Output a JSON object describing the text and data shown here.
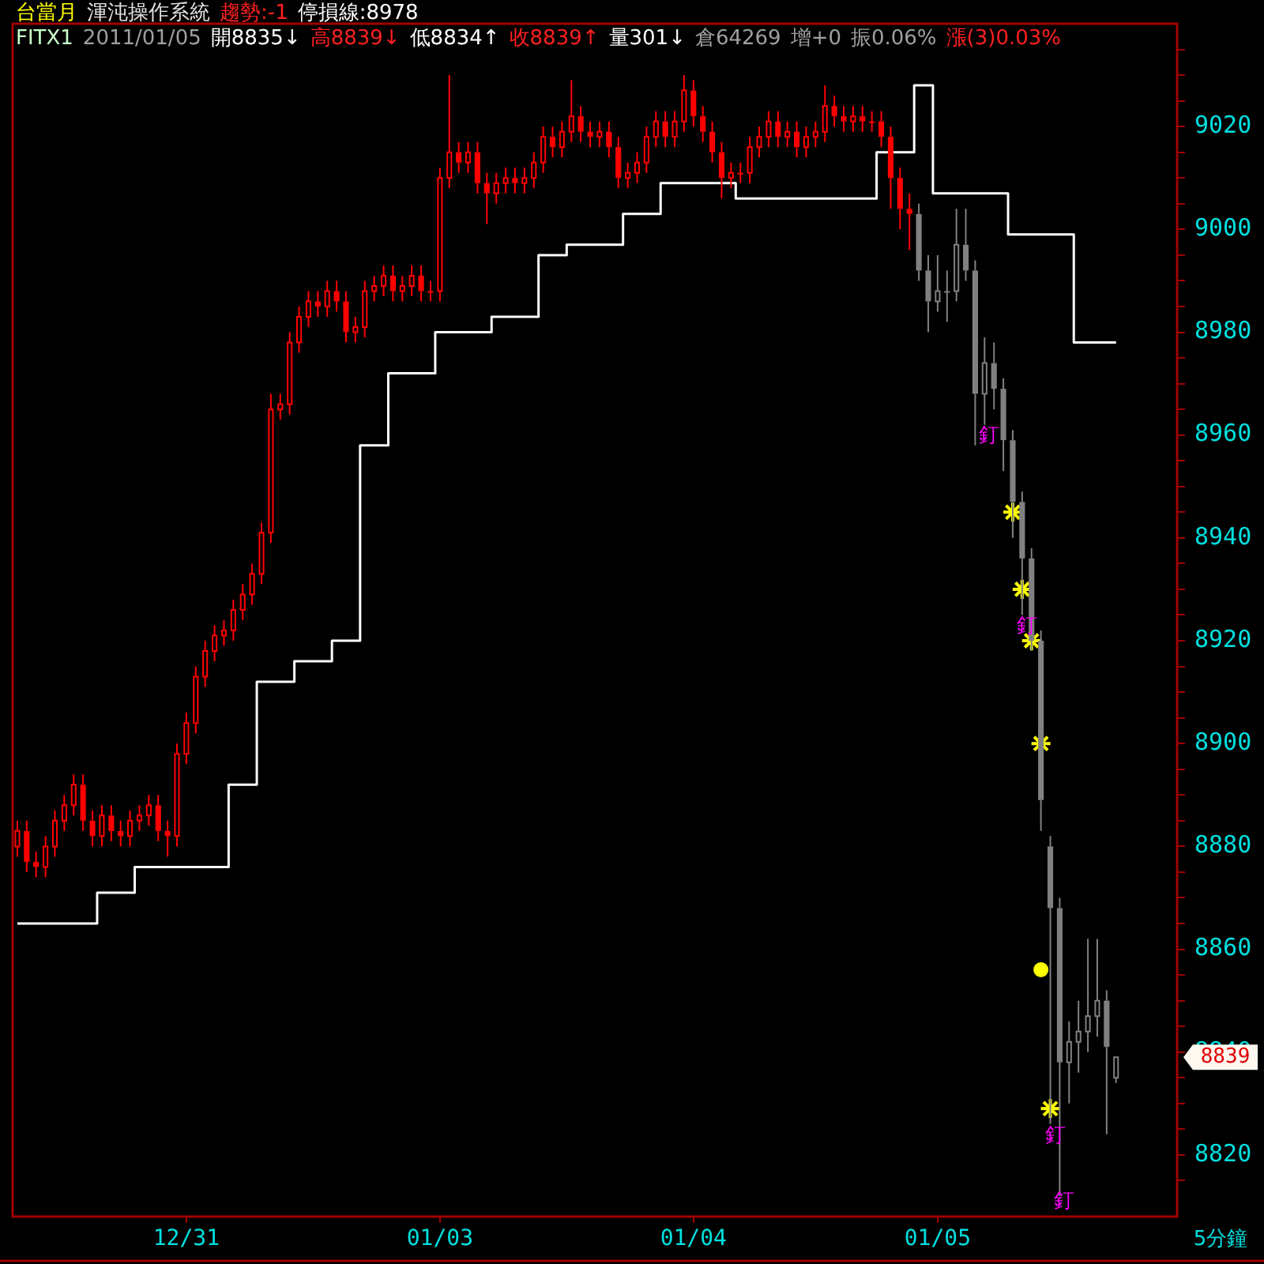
{
  "chart_data": {
    "type": "candlestick",
    "title": "台當月",
    "subtitle": "渾沌操作系統",
    "annotations": [
      "趨勢:-1",
      "停損線:8978",
      "FITX1",
      "2011/01/05",
      "開8835↓",
      "高8839↓",
      "低8834↑",
      "收8839↑",
      "量301↓",
      "倉64269",
      "增+0",
      "振0.06%",
      "漲(3)0.03%",
      "5分鐘",
      "8839"
    ],
    "categories": [
      null,
      null,
      null,
      null,
      null,
      null,
      null,
      null,
      null,
      null,
      null,
      null,
      null,
      null,
      null,
      null,
      null,
      null,
      "12/31",
      null,
      null,
      null,
      null,
      null,
      null,
      null,
      null,
      null,
      null,
      null,
      null,
      null,
      null,
      null,
      null,
      null,
      null,
      null,
      null,
      null,
      null,
      null,
      null,
      null,
      null,
      "01/03",
      null,
      null,
      null,
      null,
      null,
      null,
      null,
      null,
      null,
      null,
      null,
      null,
      null,
      null,
      null,
      null,
      null,
      null,
      null,
      null,
      null,
      null,
      null,
      null,
      null,
      null,
      "01/04",
      null,
      null,
      null,
      null,
      null,
      null,
      null,
      null,
      null,
      null,
      null,
      null,
      null,
      null,
      null,
      null,
      null,
      null,
      null,
      null,
      null,
      null,
      null,
      null,
      null,
      "01/05",
      null,
      null,
      null,
      null,
      null,
      null,
      null,
      null,
      null,
      null,
      null,
      null,
      null,
      null,
      null,
      null,
      null,
      null,
      null,
      null,
      null,
      null,
      null,
      null,
      null
    ],
    "ylim": [
      8808,
      9040
    ],
    "yticks": [
      {
        "value": 8815,
        "label": null
      },
      8820,
      {
        "value": 8825,
        "label": null
      },
      {
        "value": 8830,
        "label": null
      },
      {
        "value": 8835,
        "label": null
      },
      8840,
      {
        "value": 8845,
        "label": null
      },
      {
        "value": 8850,
        "label": null
      },
      {
        "value": 8855,
        "label": null
      },
      8860,
      {
        "value": 8865,
        "label": null
      },
      {
        "value": 8870,
        "label": null
      },
      {
        "value": 8875,
        "label": null
      },
      8880,
      {
        "value": 8885,
        "label": null
      },
      {
        "value": 8890,
        "label": null
      },
      {
        "value": 8895,
        "label": null
      },
      8900,
      {
        "value": 8905,
        "label": null
      },
      {
        "value": 8910,
        "label": null
      },
      {
        "value": 8915,
        "label": null
      },
      8920,
      {
        "value": 8925,
        "label": null
      },
      {
        "value": 8930,
        "label": null
      },
      {
        "value": 8935,
        "label": null
      },
      8940,
      {
        "value": 8945,
        "label": null
      },
      {
        "value": 8950,
        "label": null
      },
      {
        "value": 8955,
        "label": null
      },
      8960,
      {
        "value": 8965,
        "label": null
      },
      {
        "value": 8970,
        "label": null
      },
      {
        "value": 8975,
        "label": null
      },
      8980,
      {
        "value": 8985,
        "label": null
      },
      {
        "value": 8990,
        "label": null
      },
      {
        "value": 8995,
        "label": null
      },
      9000,
      {
        "value": 9005,
        "label": null
      },
      {
        "value": 9010,
        "label": null
      },
      {
        "value": 9015,
        "label": null
      },
      9020,
      {
        "value": 9025,
        "label": null
      },
      {
        "value": 9030,
        "label": null
      },
      {
        "value": 9035,
        "label": null
      }
    ],
    "legend": false,
    "series": [
      {
        "color": "#ff0000",
        "ohlc": [
          [
            8880,
            8885,
            8878,
            8883
          ],
          [
            8883,
            8885,
            8875,
            8877
          ],
          [
            8877,
            8879,
            8874,
            8876
          ],
          [
            8876,
            8882,
            8874,
            8880
          ],
          [
            8880,
            8887,
            8878,
            8885
          ],
          [
            8885,
            8890,
            8883,
            8888
          ],
          [
            8888,
            8894,
            8886,
            8892
          ],
          [
            8892,
            8894,
            8883,
            8885
          ],
          [
            8885,
            8887,
            8880,
            8882
          ],
          [
            8882,
            8888,
            8880,
            8886
          ],
          [
            8886,
            8888,
            8881,
            8883
          ],
          [
            8883,
            8885,
            8880,
            8882
          ],
          [
            8882,
            8887,
            8880,
            8885
          ],
          [
            8885,
            8888,
            8883,
            8886
          ],
          [
            8886,
            8890,
            8884,
            8888
          ],
          [
            8888,
            8890,
            8881,
            8883
          ],
          [
            8883,
            8885,
            8878,
            8882
          ],
          [
            8882,
            8900,
            8880,
            8898
          ],
          [
            8898,
            8906,
            8896,
            8904
          ],
          [
            8904,
            8915,
            8902,
            8913
          ],
          [
            8913,
            8920,
            8911,
            8918
          ],
          [
            8918,
            8923,
            8916,
            8921
          ],
          [
            8921,
            8924,
            8919,
            8922
          ],
          [
            8922,
            8928,
            8920,
            8926
          ],
          [
            8926,
            8931,
            8924,
            8929
          ],
          [
            8929,
            8935,
            8927,
            8933
          ],
          [
            8933,
            8943,
            8931,
            8941
          ],
          [
            8941,
            8968,
            8939,
            8965
          ],
          [
            8965,
            8968,
            8963,
            8966
          ],
          [
            8966,
            8980,
            8964,
            8978
          ],
          [
            8978,
            8985,
            8976,
            8983
          ],
          [
            8983,
            8988,
            8981,
            8986
          ],
          [
            8986,
            8988,
            8983,
            8985
          ],
          [
            8985,
            8990,
            8983,
            8988
          ],
          [
            8988,
            8990,
            8984,
            8986
          ],
          [
            8986,
            8988,
            8978,
            8980
          ],
          [
            8980,
            8983,
            8978,
            8981
          ],
          [
            8981,
            8990,
            8979,
            8988
          ],
          [
            8988,
            8991,
            8986,
            8989
          ],
          [
            8989,
            8993,
            8987,
            8991
          ],
          [
            8991,
            8993,
            8986,
            8988
          ],
          [
            8988,
            8991,
            8986,
            8989
          ],
          [
            8989,
            8993,
            8987,
            8991
          ],
          [
            8991,
            8993,
            8986,
            8988
          ],
          [
            8988,
            8990,
            8986,
            8988
          ],
          [
            8988,
            9012,
            8986,
            9010
          ],
          [
            9010,
            9030,
            9008,
            9015
          ],
          [
            9015,
            9017,
            9011,
            9013
          ],
          [
            9013,
            9017,
            9011,
            9015
          ],
          [
            9015,
            9017,
            9007,
            9009
          ],
          [
            9009,
            9011,
            9001,
            9007
          ],
          [
            9007,
            9011,
            9005,
            9009
          ],
          [
            9009,
            9012,
            9007,
            9010
          ],
          [
            9010,
            9012,
            9007,
            9009
          ],
          [
            9009,
            9012,
            9007,
            9010
          ],
          [
            9010,
            9015,
            9008,
            9013
          ],
          [
            9013,
            9020,
            9011,
            9018
          ],
          [
            9018,
            9020,
            9014,
            9016
          ],
          [
            9016,
            9021,
            9014,
            9019
          ],
          [
            9019,
            9029,
            9017,
            9022
          ],
          [
            9022,
            9024,
            9017,
            9019
          ],
          [
            9019,
            9021,
            9016,
            9018
          ],
          [
            9018,
            9021,
            9016,
            9019
          ],
          [
            9019,
            9021,
            9014,
            9016
          ],
          [
            9016,
            9018,
            9008,
            9010
          ],
          [
            9010,
            9013,
            9008,
            9011
          ],
          [
            9011,
            9015,
            9009,
            9013
          ],
          [
            9013,
            9020,
            9011,
            9018
          ],
          [
            9018,
            9023,
            9016,
            9021
          ],
          [
            9021,
            9023,
            9016,
            9018
          ],
          [
            9018,
            9023,
            9016,
            9021
          ],
          [
            9021,
            9030,
            9019,
            9027
          ],
          [
            9027,
            9029,
            9020,
            9022
          ],
          [
            9022,
            9024,
            9017,
            9019
          ],
          [
            9019,
            9021,
            9013,
            9015
          ],
          [
            9015,
            9017,
            9006,
            9010
          ],
          [
            9010,
            9013,
            9008,
            9011
          ],
          [
            9011,
            9013,
            9009,
            9011
          ],
          [
            9011,
            9018,
            9009,
            9016
          ],
          [
            9016,
            9020,
            9014,
            9018
          ],
          [
            9018,
            9023,
            9016,
            9021
          ],
          [
            9021,
            9023,
            9016,
            9018
          ],
          [
            9018,
            9021,
            9016,
            9019
          ],
          [
            9019,
            9021,
            9014,
            9016
          ],
          [
            9016,
            9020,
            9014,
            9018
          ],
          [
            9018,
            9021,
            9016,
            9019
          ],
          [
            9019,
            9028,
            9017,
            9024
          ],
          [
            9024,
            9026,
            9020,
            9022
          ],
          [
            9022,
            9024,
            9019,
            9021
          ],
          [
            9021,
            9024,
            9019,
            9022
          ],
          [
            9022,
            9024,
            9019,
            9021
          ],
          [
            9021,
            9023,
            9019,
            9021
          ],
          [
            9021,
            9023,
            9016,
            9018
          ],
          [
            9018,
            9020,
            9004,
            9010
          ],
          [
            9010,
            9012,
            9000,
            9004
          ],
          [
            9004,
            9007,
            8996,
            9003
          ],
          null,
          null,
          null,
          null,
          null,
          null,
          null,
          null,
          null,
          null,
          null,
          null,
          null,
          null,
          null,
          null,
          null,
          null,
          null,
          null,
          null,
          null,
          null,
          null,
          null,
          null,
          null,
          null
        ]
      },
      {
        "type": "candlestick",
        "color": "#808080",
        "ohlc": [
          null,
          null,
          null,
          null,
          null,
          null,
          null,
          null,
          null,
          null,
          null,
          null,
          null,
          null,
          null,
          null,
          null,
          null,
          null,
          null,
          null,
          null,
          null,
          null,
          null,
          null,
          null,
          null,
          null,
          null,
          null,
          null,
          null,
          null,
          null,
          null,
          null,
          null,
          null,
          null,
          null,
          null,
          null,
          null,
          null,
          null,
          null,
          null,
          null,
          null,
          null,
          null,
          null,
          null,
          null,
          null,
          null,
          null,
          null,
          null,
          null,
          null,
          null,
          null,
          null,
          null,
          null,
          null,
          null,
          null,
          null,
          null,
          null,
          null,
          null,
          null,
          null,
          null,
          null,
          null,
          null,
          null,
          null,
          null,
          null,
          null,
          null,
          null,
          null,
          null,
          null,
          null,
          null,
          null,
          null,
          null,
          [
            9003,
            9005,
            8990,
            8992
          ],
          [
            8992,
            8995,
            8980,
            8986
          ],
          [
            8986,
            8995,
            8984,
            8988
          ],
          [
            8988,
            8992,
            8982,
            8988
          ],
          [
            8988,
            9004,
            8986,
            8997
          ],
          [
            8997,
            9004,
            8990,
            8992
          ],
          [
            8992,
            8994,
            8958,
            8968
          ],
          [
            8968,
            8979,
            8962,
            8974
          ],
          [
            8974,
            8978,
            8965,
            8969
          ],
          [
            8969,
            8971,
            8953,
            8959
          ],
          [
            8959,
            8961,
            8940,
            8947
          ],
          [
            8947,
            8949,
            8925,
            8936
          ],
          [
            8936,
            8938,
            8918,
            8920
          ],
          [
            8920,
            8922,
            8883,
            8889
          ],
          [
            8880,
            8882,
            8826,
            8868
          ],
          [
            8868,
            8870,
            8812,
            8838
          ],
          [
            8838,
            8846,
            8830,
            8842
          ],
          [
            8842,
            8850,
            8836,
            8844
          ],
          [
            8844,
            8862,
            8840,
            8847
          ],
          [
            8847,
            8862,
            8843,
            8850
          ],
          [
            8850,
            8852,
            8824,
            8841
          ],
          [
            8835,
            8839,
            8834,
            8839
          ],
          null,
          null,
          null,
          null,
          null,
          null
        ],
        "value_labels": [
          null,
          null,
          null,
          null,
          null,
          null,
          null,
          null,
          null,
          null,
          null,
          null,
          null,
          null,
          null,
          null,
          null,
          null,
          null,
          null,
          null,
          null,
          null,
          null,
          null,
          null,
          null,
          null,
          null,
          null,
          null,
          null,
          null,
          null,
          null,
          null,
          null,
          null,
          null,
          null,
          null,
          null,
          null,
          null,
          null,
          null,
          null,
          null,
          null,
          null,
          null,
          null,
          null,
          null,
          null,
          null,
          null,
          null,
          null,
          null,
          null,
          null,
          null,
          null,
          null,
          null,
          null,
          null,
          null,
          null,
          null,
          null,
          null,
          null,
          null,
          null,
          null,
          null,
          null,
          null,
          null,
          null,
          null,
          null,
          null,
          null,
          null,
          null,
          null,
          null,
          null,
          null,
          null,
          null,
          null,
          null,
          null,
          null,
          null,
          null,
          null,
          null,
          null,
          "釘",
          null,
          null,
          null,
          "釘",
          null,
          null,
          "釘",
          "釘",
          null,
          null,
          null,
          null,
          null,
          null,
          null,
          null,
          null,
          null,
          null,
          null
        ]
      },
      {
        "type": "step",
        "color": "#ffffff",
        "values": [
          8865,
          8865,
          8865,
          8865,
          8865,
          8865,
          8865,
          8865,
          8865,
          8871,
          8871,
          8871,
          8871,
          8876,
          8876,
          8876,
          8876,
          8876,
          8876,
          8876,
          8876,
          8876,
          8876,
          8892,
          8892,
          8892,
          8912,
          8912,
          8912,
          8912,
          8916,
          8916,
          8916,
          8916,
          8920,
          8920,
          8920,
          8958,
          8958,
          8958,
          8972,
          8972,
          8972,
          8972,
          8972,
          8980,
          8980,
          8980,
          8980,
          8980,
          8980,
          8983,
          8983,
          8983,
          8983,
          8983,
          8995,
          8995,
          8995,
          8997,
          8997,
          8997,
          8997,
          8997,
          8997,
          9003,
          9003,
          9003,
          9003,
          9009,
          9009,
          9009,
          9009,
          9009,
          9009,
          9009,
          9009,
          9006,
          9006,
          9006,
          9006,
          9006,
          9006,
          9006,
          9006,
          9006,
          9006,
          9006,
          9006,
          9006,
          9006,
          9006,
          9015,
          9015,
          9015,
          9015,
          9028,
          9028,
          9007,
          9007,
          9007,
          9007,
          9007,
          9007,
          9007,
          9007,
          8999,
          8999,
          8999,
          8999,
          8999,
          8999,
          8999,
          8978,
          8978,
          8978,
          8978,
          8978,
          null,
          null,
          null,
          null,
          null,
          null
        ]
      },
      {
        "type": "scatter",
        "color": "#ffff00",
        "marker": "cross",
        "values": [
          null,
          null,
          null,
          null,
          null,
          null,
          null,
          null,
          null,
          null,
          null,
          null,
          null,
          null,
          null,
          null,
          null,
          null,
          null,
          null,
          null,
          null,
          null,
          null,
          null,
          null,
          null,
          null,
          null,
          null,
          null,
          null,
          null,
          null,
          null,
          null,
          null,
          null,
          null,
          null,
          null,
          null,
          null,
          null,
          null,
          null,
          null,
          null,
          null,
          null,
          null,
          null,
          null,
          null,
          null,
          null,
          null,
          null,
          null,
          null,
          null,
          null,
          null,
          null,
          null,
          null,
          null,
          null,
          null,
          null,
          null,
          null,
          null,
          null,
          null,
          null,
          null,
          null,
          null,
          null,
          null,
          null,
          null,
          null,
          null,
          null,
          null,
          null,
          null,
          null,
          null,
          null,
          null,
          null,
          null,
          null,
          null,
          null,
          null,
          null,
          null,
          null,
          null,
          null,
          null,
          null,
          8945,
          8930,
          8920,
          8900,
          8829,
          null,
          null,
          null,
          null,
          null,
          null,
          null,
          null,
          null,
          null,
          null,
          null,
          null
        ]
      },
      {
        "type": "scatter",
        "color": "#ffff00",
        "marker": "circle",
        "values": [
          null,
          null,
          null,
          null,
          null,
          null,
          null,
          null,
          null,
          null,
          null,
          null,
          null,
          null,
          null,
          null,
          null,
          null,
          null,
          null,
          null,
          null,
          null,
          null,
          null,
          null,
          null,
          null,
          null,
          null,
          null,
          null,
          null,
          null,
          null,
          null,
          null,
          null,
          null,
          null,
          null,
          null,
          null,
          null,
          null,
          null,
          null,
          null,
          null,
          null,
          null,
          null,
          null,
          null,
          null,
          null,
          null,
          null,
          null,
          null,
          null,
          null,
          null,
          null,
          null,
          null,
          null,
          null,
          null,
          null,
          null,
          null,
          null,
          null,
          null,
          null,
          null,
          null,
          null,
          null,
          null,
          null,
          null,
          null,
          null,
          null,
          null,
          null,
          null,
          null,
          null,
          null,
          null,
          null,
          null,
          null,
          null,
          null,
          null,
          null,
          null,
          null,
          null,
          null,
          null,
          null,
          null,
          null,
          null,
          8856,
          null,
          null,
          null,
          null,
          null,
          null,
          null,
          null,
          null,
          null,
          null,
          null,
          null,
          null
        ]
      }
    ]
  }
}
